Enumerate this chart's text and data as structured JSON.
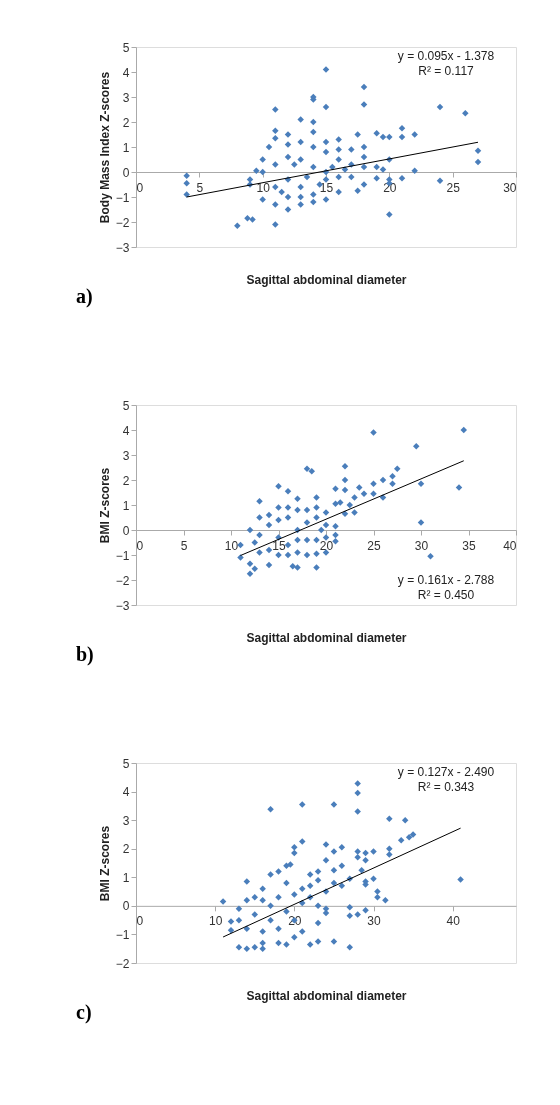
{
  "chart_data": [
    {
      "type": "scatter",
      "xlabel": "Sagittal abdominal diameter",
      "ylabel": "Body Mass Index Z-scores",
      "xlim": [
        0,
        30
      ],
      "xticks": [
        0,
        5,
        10,
        15,
        20,
        25,
        30
      ],
      "ylim": [
        -3,
        5
      ],
      "yticks": [
        -3,
        -2,
        -1,
        0,
        1,
        2,
        3,
        4,
        5
      ],
      "grid": false,
      "series": [
        {
          "color": "#4a7ebb",
          "marker": "diamond",
          "x": [
            4,
            4,
            4,
            8,
            8.8,
            9.2,
            11,
            11,
            13,
            14,
            14,
            14,
            14,
            15,
            15,
            15,
            18,
            18,
            17.5,
            19,
            19.5,
            20,
            21,
            21,
            22,
            24,
            26,
            27,
            27,
            22,
            24,
            21,
            20,
            20,
            20,
            20,
            19,
            19,
            19.5,
            18,
            18,
            18,
            17.5,
            17,
            16,
            16,
            16,
            15,
            15,
            13,
            12,
            11,
            10,
            9,
            9,
            9.5,
            10,
            10.5,
            11,
            11,
            12,
            12,
            13,
            14,
            12.5,
            13.5,
            14.5,
            11.5,
            12,
            13,
            14,
            15,
            15.5,
            16.5,
            17,
            10,
            11,
            12,
            13,
            14,
            15,
            16,
            13,
            11,
            12,
            14,
            17,
            18,
            16
          ],
          "values": [
            -0.15,
            -0.45,
            -0.9,
            -2.15,
            -1.85,
            -1.9,
            -2.1,
            2.5,
            2.1,
            3.0,
            2.9,
            2.0,
            1.6,
            4.1,
            2.6,
            1.2,
            3.4,
            2.7,
            1.5,
            1.55,
            1.4,
            1.4,
            1.75,
            1.4,
            1.5,
            2.6,
            2.35,
            0.85,
            0.4,
            0.05,
            -0.35,
            -0.25,
            -0.3,
            -0.45,
            -1.7,
            0.5,
            0.2,
            -0.25,
            0.1,
            -0.5,
            0.6,
            1.0,
            -0.75,
            0.9,
            1.3,
            -0.8,
            0.5,
            -1.1,
            0.8,
            -1.3,
            -1.5,
            -1.3,
            -1.1,
            -0.3,
            -0.5,
            0.05,
            0.5,
            1.0,
            1.65,
            1.35,
            1.5,
            1.1,
            1.2,
            1.0,
            0.3,
            -0.2,
            -0.5,
            -0.8,
            -0.3,
            -0.6,
            -0.9,
            -0.3,
            0.2,
            0.1,
            0.3,
            0,
            0.3,
            0.6,
            0.5,
            0.2,
            0,
            -0.2,
            -1.0,
            -0.6,
            -1.0,
            -1.2,
            -0.2,
            0.2,
            0.9
          ]
        },
        {
          "type": "line",
          "color": "#000000",
          "x": [
            4,
            27
          ],
          "values": [
            -1.0,
            1.19
          ]
        }
      ],
      "annotations": [
        "y = 0.095x - 1.378",
        "R² = 0.117",
        "a)"
      ]
    },
    {
      "type": "scatter",
      "xlabel": "Sagittal abdominal diameter",
      "ylabel": "BMI Z-scores",
      "xlim": [
        0,
        40
      ],
      "xticks": [
        0,
        5,
        10,
        15,
        20,
        25,
        30,
        35,
        40
      ],
      "ylim": [
        -3,
        5
      ],
      "yticks": [
        -3,
        -2,
        -1,
        0,
        1,
        2,
        3,
        4,
        5
      ],
      "grid": false,
      "series": [
        {
          "color": "#4a7ebb",
          "marker": "diamond",
          "x": [
            25,
            34.5,
            29.5,
            30,
            30,
            31,
            34,
            18,
            18.5,
            22,
            22,
            22,
            21,
            15,
            16,
            13,
            17,
            19,
            23.5,
            24,
            23,
            25,
            25,
            26,
            26,
            27,
            27,
            27.5,
            22.5,
            23,
            22,
            21,
            21.5,
            21,
            21,
            21,
            20,
            19,
            19,
            17,
            16.5,
            12,
            11,
            11,
            12,
            12.5,
            14,
            15,
            13,
            12,
            12.5,
            13,
            14,
            14,
            15,
            15,
            16,
            16,
            17,
            17,
            17,
            18,
            18,
            19,
            19,
            19.5,
            20,
            20,
            18,
            16,
            14,
            13,
            15,
            17,
            19,
            20,
            18,
            16
          ],
          "values": [
            3.9,
            4.0,
            3.35,
            1.85,
            0.3,
            -1.05,
            1.7,
            2.45,
            2.35,
            2.55,
            2.0,
            1.6,
            1.65,
            1.75,
            1.55,
            1.15,
            1.25,
            1.3,
            1.7,
            1.45,
            1.3,
            1.85,
            1.45,
            2.0,
            1.3,
            2.15,
            1.85,
            2.45,
            1.0,
            0.7,
            0.65,
            1.05,
            1.1,
            0.15,
            -0.45,
            -0.2,
            -0.9,
            -0.95,
            -1.5,
            -1.5,
            -1.45,
            -1.75,
            -0.6,
            -1.1,
            -1.35,
            -1.55,
            -1.4,
            -1.0,
            0.5,
            0.0,
            -0.5,
            -0.9,
            0.6,
            0.2,
            0.9,
            -0.3,
            0.5,
            -0.6,
            0.8,
            0.0,
            -0.9,
            0.3,
            -0.4,
            0.9,
            0.5,
            0.0,
            0.7,
            -0.3,
            0.8,
            0.9,
            -0.8,
            -0.2,
            0.4,
            -0.4,
            -0.4,
            0.2,
            -1.0,
            -1.0
          ]
        },
        {
          "type": "line",
          "color": "#000000",
          "x": [
            11,
            34.5
          ],
          "values": [
            -1.02,
            2.77
          ]
        }
      ],
      "annotations": [
        "y = 0.161x - 2.788",
        "R² = 0.450",
        "b)"
      ]
    },
    {
      "type": "scatter",
      "xlabel": "Sagittal abdominal diameter",
      "ylabel": "BMI Z-scores",
      "xlim": [
        0,
        48
      ],
      "xticks": [
        0,
        10,
        20,
        30,
        40
      ],
      "ylim": [
        -2,
        5
      ],
      "yticks": [
        -2,
        -1,
        0,
        1,
        2,
        3,
        4,
        5
      ],
      "grid": false,
      "series": [
        {
          "color": "#4a7ebb",
          "marker": "diamond",
          "x": [
            28,
            28,
            28,
            17,
            21,
            25,
            32,
            34,
            35,
            34.5,
            33.5,
            41,
            21,
            20,
            20,
            24,
            25,
            26,
            28,
            28,
            29,
            30,
            29,
            32,
            32,
            28.5,
            29,
            29,
            30,
            30.5,
            30.5,
            31.5,
            27,
            27,
            27,
            28,
            29,
            24,
            24,
            27,
            25,
            23,
            22,
            11,
            14,
            12,
            12,
            13,
            14,
            15,
            16,
            16,
            18,
            19,
            20,
            21,
            23,
            16,
            17,
            18,
            19,
            19.5,
            22,
            23,
            24,
            25,
            26,
            25,
            26,
            24,
            22,
            20,
            18,
            16,
            14,
            13,
            15,
            17,
            19,
            21,
            22,
            23,
            20,
            18,
            16,
            14,
            13,
            19,
            21,
            23,
            17,
            15
          ],
          "values": [
            4.28,
            3.95,
            3.3,
            3.38,
            3.55,
            3.55,
            3.05,
            3.0,
            2.5,
            2.4,
            2.3,
            0.92,
            2.25,
            2.05,
            1.85,
            2.15,
            1.9,
            2.05,
            1.9,
            1.7,
            1.85,
            1.9,
            1.6,
            2.0,
            1.8,
            1.25,
            0.85,
            0.75,
            0.95,
            0.5,
            0.3,
            0.2,
            0.95,
            -0.05,
            -0.35,
            -0.3,
            -0.15,
            -0.25,
            -0.1,
            -1.45,
            -1.25,
            -1.25,
            -1.35,
            0.15,
            0.85,
            -0.55,
            -0.85,
            -1.45,
            -1.5,
            -1.45,
            -1.5,
            -1.3,
            -1.3,
            -1.35,
            -1.1,
            -0.9,
            -0.6,
            0.6,
            1.1,
            1.2,
            1.4,
            1.45,
            1.1,
            1.2,
            1.6,
            1.25,
            1.4,
            0.8,
            0.7,
            0.5,
            0.7,
            0.4,
            0.3,
            0.2,
            0.2,
            -0.1,
            -0.3,
            -0.5,
            -0.2,
            0.1,
            0.3,
            0.0,
            -0.5,
            -0.8,
            -0.9,
            -0.8,
            -0.5,
            0.8,
            0.6,
            0.9,
            0.0,
            0.3
          ]
        },
        {
          "type": "line",
          "color": "#000000",
          "x": [
            11,
            41
          ],
          "values": [
            -1.09,
            2.72
          ]
        }
      ],
      "annotations": [
        "y = 0.127x - 2.490",
        "R² = 0.343",
        "c)"
      ]
    }
  ]
}
